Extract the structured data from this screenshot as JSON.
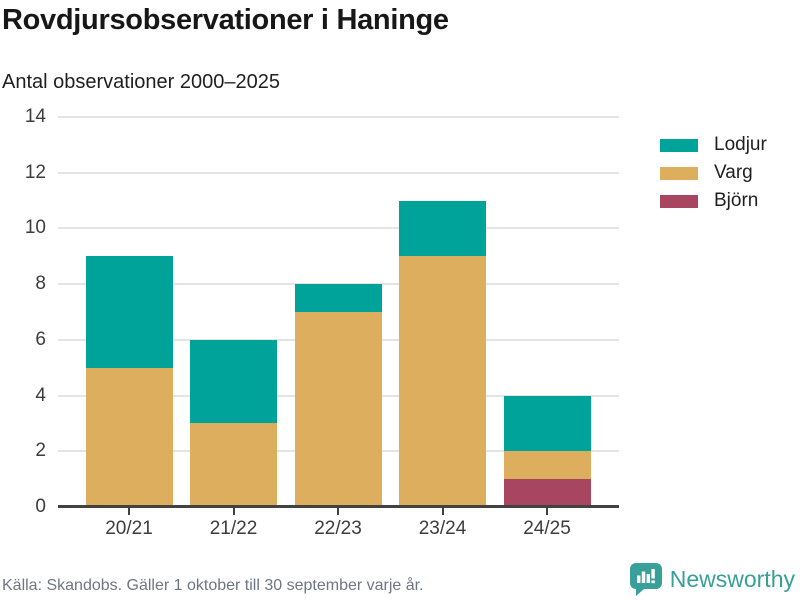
{
  "chart": {
    "title": "Rovdjursobservationer i Haninge",
    "subtitle": "Antal observationer 2000–2025"
  },
  "chart_data": {
    "type": "bar",
    "stacked": true,
    "title": "Rovdjursobservationer i Haninge",
    "subtitle": "Antal observationer 2000–2025",
    "categories": [
      "20/21",
      "21/22",
      "22/23",
      "23/24",
      "24/25"
    ],
    "series": [
      {
        "name": "Lodjur",
        "color": "#00a39a",
        "values": [
          4,
          3,
          1,
          2,
          2
        ]
      },
      {
        "name": "Varg",
        "color": "#dcae5d",
        "values": [
          5,
          3,
          7,
          9,
          1
        ]
      },
      {
        "name": "Björn",
        "color": "#a84560",
        "values": [
          0,
          0,
          0,
          0,
          1
        ]
      }
    ],
    "totals": [
      9,
      6,
      8,
      11,
      4
    ],
    "stack_bottom_to_top": [
      "Björn",
      "Varg",
      "Lodjur"
    ],
    "xlabel": "",
    "ylabel": "",
    "ylim": [
      0,
      14
    ],
    "ytick_step": 2,
    "yticks": [
      0,
      2,
      4,
      6,
      8,
      10,
      12,
      14
    ],
    "grid": true,
    "legend_position": "right-top"
  },
  "footer": {
    "source": "Källa: Skandobs. Gäller 1 oktober till 30 september varje år.",
    "brand": "Newsworthy"
  },
  "colors": {
    "lodjur": "#00a39a",
    "varg": "#dcae5d",
    "bjorn": "#a84560",
    "grid": "#e4e4e4",
    "axis": "#424242",
    "tick_label": "#3d3d3d",
    "title_text": "#171717",
    "source_text": "#6e7683",
    "brand_teal": "#38a099"
  }
}
